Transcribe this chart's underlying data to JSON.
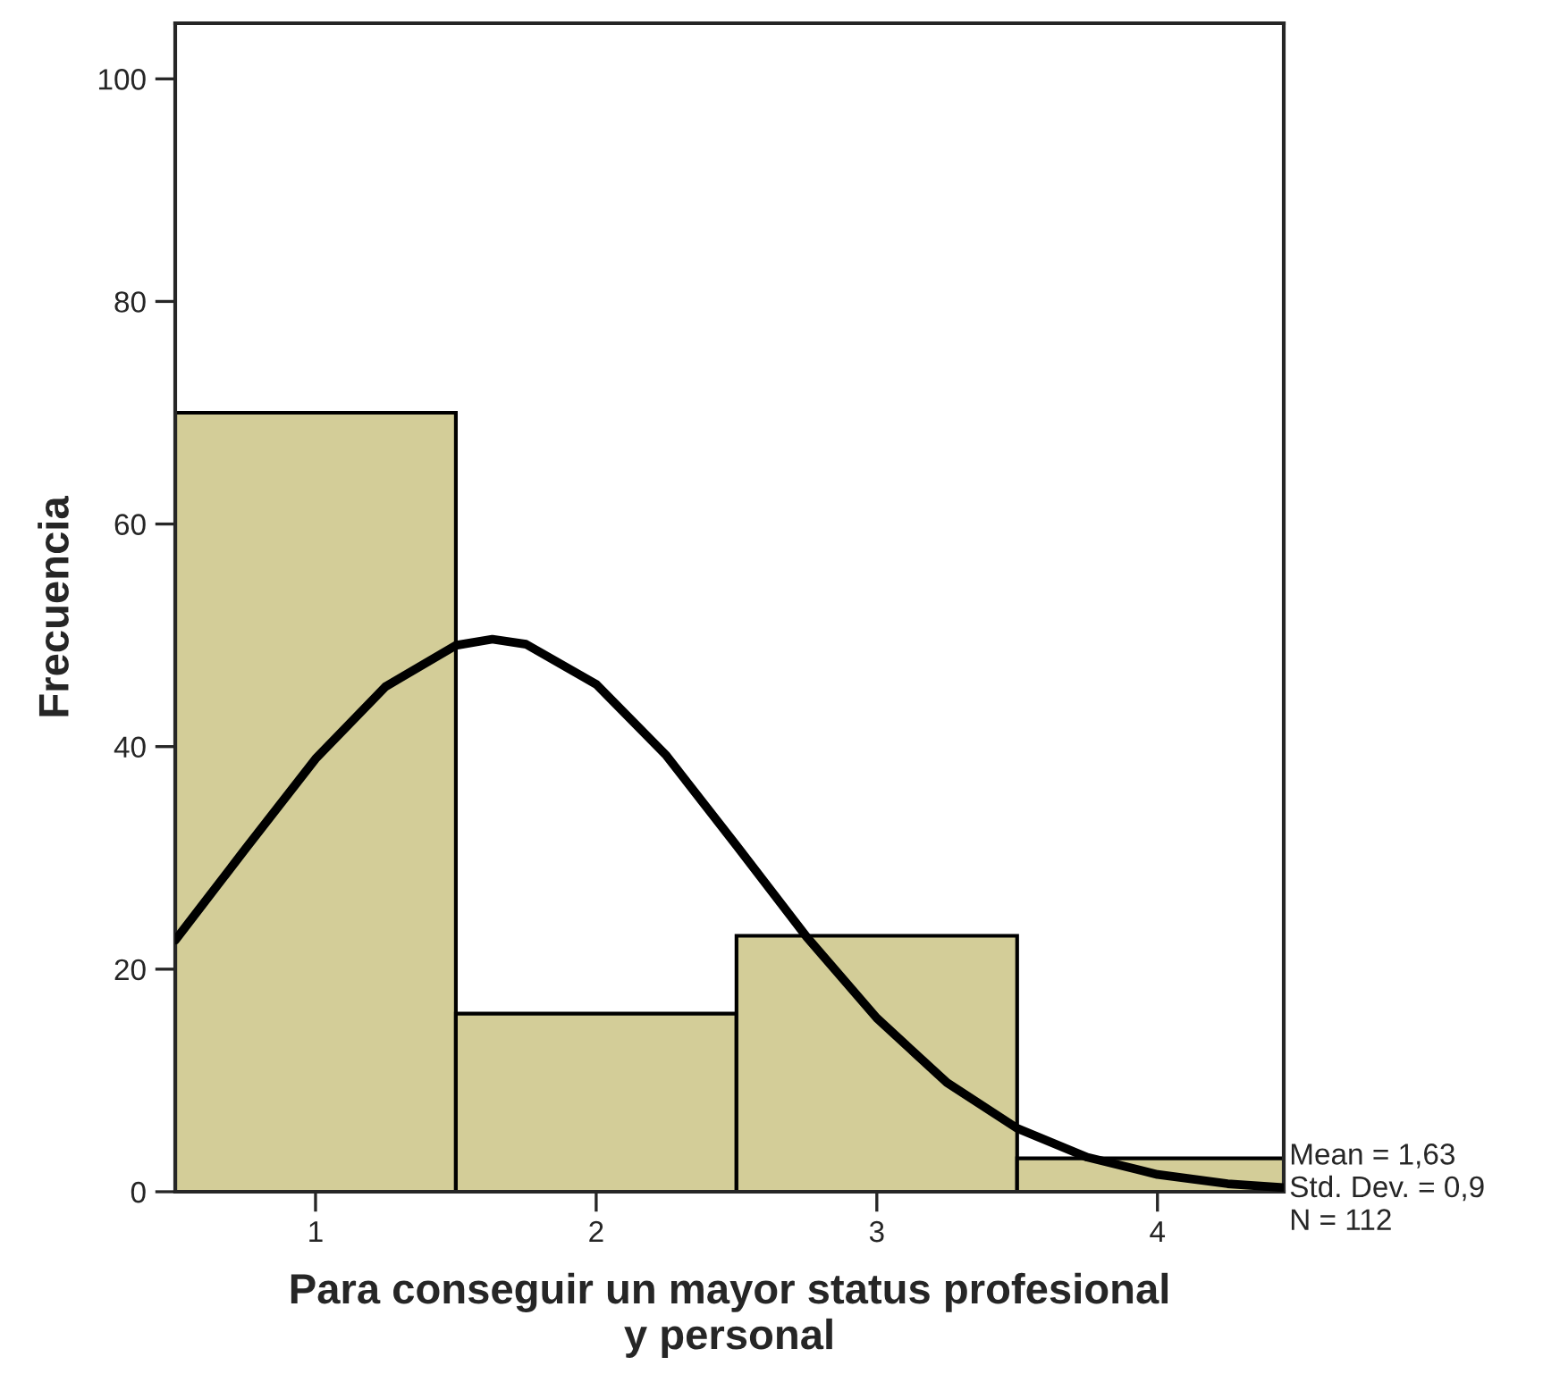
{
  "chart_data": {
    "type": "histogram",
    "bins": [
      0.5,
      1.5,
      2.5,
      3.5,
      4.5
    ],
    "values": [
      70,
      16,
      23,
      3
    ],
    "color": "#d3cd98",
    "series": [
      {
        "type": "line",
        "color": "#000000",
        "x": [
          0.5,
          0.75,
          1.0,
          1.25,
          1.5,
          1.63,
          1.75,
          2.0,
          2.25,
          2.5,
          2.75,
          3.0,
          3.25,
          3.5,
          3.75,
          4.0,
          4.25,
          4.45
        ],
        "values": [
          22.6,
          30.8,
          38.9,
          45.4,
          49.1,
          49.65,
          49.2,
          45.6,
          39.2,
          31.1,
          22.9,
          15.6,
          9.8,
          5.7,
          3.1,
          1.55,
          0.72,
          0.37
        ]
      }
    ],
    "xlabel": "Para conseguir un mayor status profesional\ny personal",
    "ylabel": "Frecuencia",
    "xlim": [
      0.5,
      4.45
    ],
    "xticks": [
      1,
      2,
      3,
      4
    ],
    "ylim": [
      0,
      105
    ],
    "yticks": [
      0,
      20,
      40,
      60,
      80,
      100
    ],
    "annotations": [
      "Mean = 1,63",
      "Std. Dev. = 0,9",
      "N = 112"
    ]
  }
}
